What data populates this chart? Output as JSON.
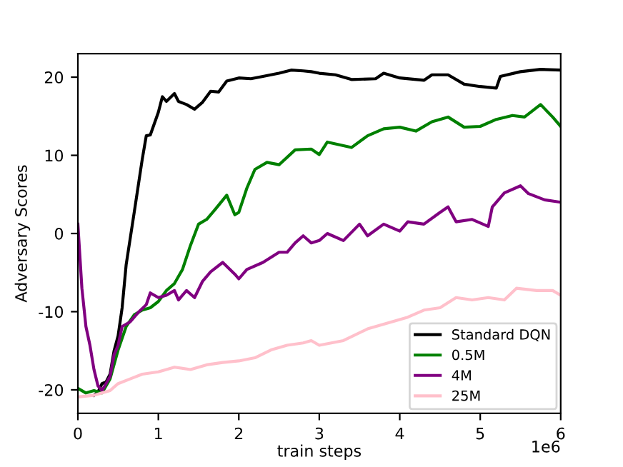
{
  "chart_data": {
    "type": "line",
    "xlabel": "train steps",
    "ylabel": "Adversary Scores",
    "xlim": [
      0,
      6
    ],
    "xticks": [
      0,
      1,
      2,
      3,
      4,
      5,
      6
    ],
    "ylim": [
      -23,
      23
    ],
    "yticks": [
      -20,
      -10,
      0,
      10,
      20
    ],
    "annotations": [
      "1e6"
    ],
    "grid": false,
    "legend": "bottom right",
    "marker": "none",
    "line_style": "solid",
    "series": [
      {
        "name": "Standard DQN",
        "color": "#000000",
        "x": [
          0.2,
          0.25,
          0.3,
          0.35,
          0.4,
          0.45,
          0.5,
          0.55,
          0.6,
          0.7,
          0.8,
          0.85,
          0.9,
          1.0,
          1.05,
          1.1,
          1.2,
          1.25,
          1.35,
          1.45,
          1.55,
          1.65,
          1.75,
          1.85,
          2.0,
          2.15,
          2.3,
          2.5,
          2.65,
          2.8,
          2.9,
          3.0,
          3.2,
          3.4,
          3.7,
          3.8,
          4.0,
          4.3,
          4.4,
          4.6,
          4.8,
          5.0,
          5.2,
          5.25,
          5.5,
          5.75,
          6.0
        ],
        "values": [
          -20.7,
          -20.3,
          -19.2,
          -19,
          -18,
          -15,
          -13.1,
          -9.5,
          -4,
          2.7,
          9.5,
          12.5,
          12.6,
          15.5,
          17.5,
          16.9,
          17.9,
          16.9,
          16.5,
          15.9,
          16.8,
          18.2,
          18.1,
          19.5,
          19.9,
          19.8,
          20.1,
          20.5,
          20.9,
          20.8,
          20.7,
          20.5,
          20.3,
          19.7,
          19.8,
          20.5,
          19.9,
          19.6,
          20.3,
          20.3,
          19.1,
          18.8,
          18.6,
          20.1,
          20.7,
          21,
          20.9
        ]
      },
      {
        "name": "0.5M",
        "color": "#008000",
        "x": [
          0,
          0.1,
          0.2,
          0.3,
          0.4,
          0.5,
          0.6,
          0.7,
          0.8,
          0.9,
          1.0,
          1.1,
          1.2,
          1.3,
          1.4,
          1.5,
          1.6,
          1.7,
          1.85,
          1.95,
          2.0,
          2.1,
          2.2,
          2.35,
          2.5,
          2.7,
          2.9,
          3.0,
          3.1,
          3.4,
          3.6,
          3.8,
          4.0,
          4.2,
          4.4,
          4.6,
          4.8,
          5.0,
          5.2,
          5.4,
          5.55,
          5.75,
          5.9,
          6.0
        ],
        "values": [
          -19.8,
          -20.4,
          -20.1,
          -20.4,
          -18.6,
          -14.9,
          -11.9,
          -10.4,
          -9.8,
          -9.5,
          -8.7,
          -7.3,
          -6.4,
          -4.6,
          -1.5,
          1.2,
          1.8,
          3.0,
          4.9,
          2.4,
          2.7,
          5.8,
          8.2,
          9.1,
          8.8,
          10.7,
          10.8,
          10.1,
          11.7,
          11.0,
          12.5,
          13.4,
          13.6,
          13.1,
          14.3,
          14.9,
          13.6,
          13.7,
          14.6,
          15.1,
          14.9,
          16.5,
          14.9,
          13.7
        ]
      },
      {
        "name": "4M",
        "color": "#800080",
        "x": [
          0,
          0.05,
          0.1,
          0.15,
          0.2,
          0.25,
          0.3,
          0.35,
          0.4,
          0.45,
          0.5,
          0.55,
          0.65,
          0.75,
          0.85,
          0.9,
          1.0,
          1.1,
          1.2,
          1.25,
          1.35,
          1.45,
          1.55,
          1.65,
          1.8,
          1.95,
          2.0,
          2.1,
          2.3,
          2.5,
          2.6,
          2.7,
          2.8,
          2.9,
          3.0,
          3.1,
          3.3,
          3.5,
          3.6,
          3.8,
          4.0,
          4.1,
          4.3,
          4.5,
          4.6,
          4.7,
          4.9,
          5.1,
          5.15,
          5.3,
          5.5,
          5.6,
          5.8,
          6.0
        ],
        "values": [
          1.2,
          -7,
          -11.9,
          -14.3,
          -17.4,
          -19.5,
          -20.1,
          -19.2,
          -18.3,
          -15.5,
          -14.3,
          -11.9,
          -11.3,
          -10.1,
          -9.1,
          -7.6,
          -8.2,
          -7.9,
          -7.3,
          -8.5,
          -7.3,
          -8.2,
          -6.1,
          -4.9,
          -3.7,
          -5.2,
          -5.8,
          -4.6,
          -3.7,
          -2.4,
          -2.4,
          -1.2,
          -0.3,
          -1.2,
          -0.9,
          0,
          -0.9,
          1.2,
          -0.3,
          1.2,
          0.3,
          1.5,
          1.2,
          2.7,
          3.4,
          1.5,
          1.8,
          0.9,
          3.4,
          5.2,
          6.1,
          5.1,
          4.3,
          4.0
        ]
      },
      {
        "name": "25M",
        "color": "#ffc0cb",
        "x": [
          0,
          0.2,
          0.4,
          0.5,
          0.65,
          0.8,
          1.0,
          1.2,
          1.4,
          1.6,
          1.8,
          2.0,
          2.2,
          2.4,
          2.6,
          2.8,
          2.9,
          3.0,
          3.3,
          3.6,
          3.9,
          4.1,
          4.3,
          4.5,
          4.7,
          4.9,
          5.1,
          5.3,
          5.45,
          5.7,
          5.9,
          6.0
        ],
        "values": [
          -20.9,
          -20.7,
          -20.1,
          -19.2,
          -18.6,
          -18,
          -17.7,
          -17.1,
          -17.4,
          -16.8,
          -16.5,
          -16.3,
          -15.9,
          -14.9,
          -14.3,
          -14.0,
          -13.7,
          -14.3,
          -13.7,
          -12.2,
          -11.3,
          -10.7,
          -9.8,
          -9.5,
          -8.2,
          -8.5,
          -8.2,
          -8.5,
          -7.0,
          -7.3,
          -7.3,
          -7.9
        ]
      }
    ]
  }
}
